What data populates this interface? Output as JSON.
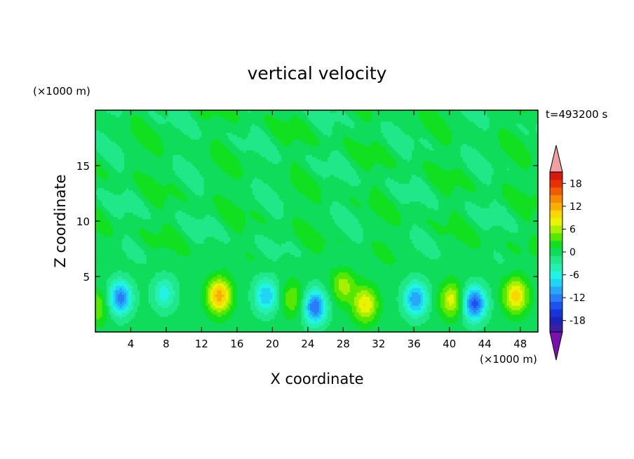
{
  "chart_data": {
    "type": "heatmap",
    "title": "vertical velocity",
    "xlabel": "X coordinate",
    "ylabel": "Z coordinate",
    "x_unit": "(×1000 m)",
    "y_unit": "(×1000 m)",
    "time_label": "t=493200 s",
    "xlim": [
      0,
      50
    ],
    "ylim": [
      0,
      20
    ],
    "x_ticks": [
      4,
      8,
      12,
      16,
      20,
      24,
      28,
      32,
      36,
      40,
      44,
      48
    ],
    "y_ticks": [
      5,
      10,
      15
    ],
    "colorbar": {
      "ticks": [
        18,
        12,
        6,
        0,
        -6,
        -12,
        -18
      ],
      "levels": [
        -21,
        -19,
        -17,
        -15,
        -13,
        -11,
        -9,
        -7,
        -5,
        -3,
        -1,
        1,
        3,
        5,
        7,
        9,
        11,
        13,
        15,
        17,
        19,
        21
      ],
      "colors": [
        "#3c1fa0",
        "#1f22b8",
        "#1535d8",
        "#1b52f0",
        "#2a7cf8",
        "#26a8f8",
        "#20d4f4",
        "#22f4e4",
        "#24f0b0",
        "#20e888",
        "#10dc5c",
        "#10e020",
        "#58e800",
        "#a8f000",
        "#e8f400",
        "#f8d800",
        "#f8b000",
        "#f88800",
        "#f05c00",
        "#e83000",
        "#d81810"
      ],
      "under_color": "#7a10b0",
      "over_color": "#f0a0a0"
    },
    "updrafts": [
      {
        "x": 14,
        "z": 3.3,
        "peak": 12
      },
      {
        "x": 28,
        "z": 4.2,
        "peak": 6
      },
      {
        "x": 30.5,
        "z": 2.5,
        "peak": 9
      },
      {
        "x": 47.5,
        "z": 3.3,
        "peak": 10
      },
      {
        "x": 40.3,
        "z": 2.9,
        "peak": 8
      },
      {
        "x": 22.3,
        "z": 3.0,
        "peak": 5
      },
      {
        "x": 0.2,
        "z": 2.3,
        "peak": 5
      }
    ],
    "downdrafts": [
      {
        "x": 2.8,
        "z": 3.1,
        "peak": -12
      },
      {
        "x": 7.8,
        "z": 3.5,
        "peak": -6
      },
      {
        "x": 19.3,
        "z": 3.3,
        "peak": -9
      },
      {
        "x": 24.8,
        "z": 2.3,
        "peak": -13
      },
      {
        "x": 36.2,
        "z": 3.0,
        "peak": -11
      },
      {
        "x": 42.8,
        "z": 2.6,
        "peak": -14
      }
    ]
  }
}
